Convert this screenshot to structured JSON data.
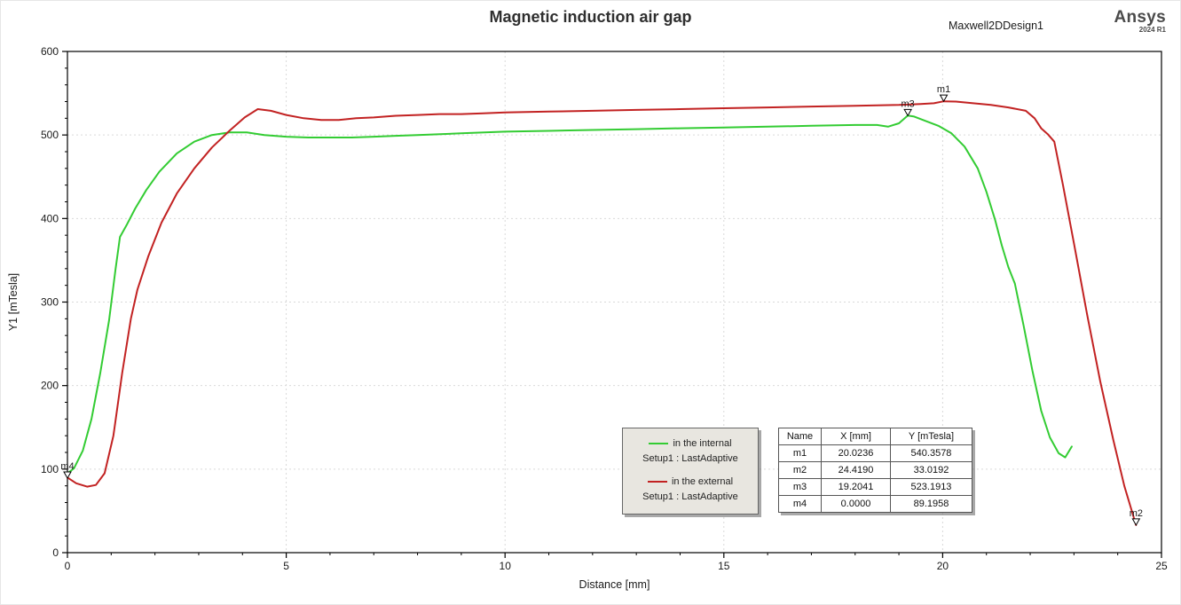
{
  "header": {
    "title": "Magnetic induction air gap",
    "design_name": "Maxwell2DDesign1",
    "brand": "Ansys",
    "brand_sub": "2024 R1"
  },
  "colors": {
    "internal": "#33cc33",
    "external": "#c22222",
    "grid": "#d9d9d9",
    "axis": "#000000"
  },
  "legend": {
    "entries": [
      {
        "label": "in the internal",
        "setup": "Setup1 : LastAdaptive",
        "color_key": "internal"
      },
      {
        "label": "in the external",
        "setup": "Setup1 : LastAdaptive",
        "color_key": "external"
      }
    ]
  },
  "marker_table": {
    "headers": [
      "Name",
      "X [mm]",
      "Y [mTesla]"
    ],
    "rows": [
      [
        "m1",
        "20.0236",
        "540.3578"
      ],
      [
        "m2",
        "24.4190",
        "33.0192"
      ],
      [
        "m3",
        "19.2041",
        "523.1913"
      ],
      [
        "m4",
        "0.0000",
        "89.1958"
      ]
    ]
  },
  "chart_data": {
    "type": "line",
    "title": "Magnetic induction air gap",
    "xlabel": "Distance [mm]",
    "ylabel": "Y1 [mTesla]",
    "xlim": [
      0,
      25
    ],
    "ylim": [
      0,
      600
    ],
    "xticks": [
      0,
      5,
      10,
      15,
      20,
      25
    ],
    "yticks": [
      0,
      100,
      200,
      300,
      400,
      500,
      600
    ],
    "x_minor_step": 1,
    "y_minor_step": 20,
    "grid": true,
    "legend_position": "lower-center-right",
    "series": [
      {
        "name": "in the internal",
        "setup": "Setup1 : LastAdaptive",
        "color": "#33cc33",
        "points": [
          [
            0,
            95
          ],
          [
            0.15,
            101
          ],
          [
            0.35,
            122
          ],
          [
            0.55,
            160
          ],
          [
            0.75,
            215
          ],
          [
            0.95,
            278
          ],
          [
            1.1,
            340
          ],
          [
            1.2,
            378
          ],
          [
            1.35,
            392
          ],
          [
            1.55,
            412
          ],
          [
            1.8,
            434
          ],
          [
            2.1,
            456
          ],
          [
            2.5,
            478
          ],
          [
            2.9,
            492
          ],
          [
            3.3,
            500
          ],
          [
            3.7,
            503
          ],
          [
            4.1,
            503
          ],
          [
            4.5,
            500
          ],
          [
            5,
            498
          ],
          [
            5.5,
            497
          ],
          [
            6,
            497
          ],
          [
            6.5,
            497
          ],
          [
            7,
            498
          ],
          [
            7.5,
            499
          ],
          [
            8,
            500
          ],
          [
            9,
            502
          ],
          [
            10,
            504
          ],
          [
            11,
            505
          ],
          [
            12,
            506
          ],
          [
            13,
            507
          ],
          [
            14,
            508
          ],
          [
            15,
            509
          ],
          [
            16,
            510
          ],
          [
            17,
            511
          ],
          [
            18,
            512
          ],
          [
            18.5,
            512
          ],
          [
            18.75,
            510
          ],
          [
            19,
            514
          ],
          [
            19.2041,
            523.1913
          ],
          [
            19.35,
            522
          ],
          [
            19.6,
            517
          ],
          [
            19.9,
            511
          ],
          [
            20.2,
            502
          ],
          [
            20.5,
            486
          ],
          [
            20.8,
            460
          ],
          [
            21,
            432
          ],
          [
            21.2,
            398
          ],
          [
            21.35,
            368
          ],
          [
            21.5,
            342
          ],
          [
            21.65,
            322
          ],
          [
            21.85,
            272
          ],
          [
            22.05,
            218
          ],
          [
            22.25,
            170
          ],
          [
            22.45,
            138
          ],
          [
            22.65,
            119
          ],
          [
            22.8,
            114
          ],
          [
            22.95,
            127
          ]
        ]
      },
      {
        "name": "in the external",
        "setup": "Setup1 : LastAdaptive",
        "color": "#c22222",
        "points": [
          [
            0,
            90
          ],
          [
            0.2,
            83
          ],
          [
            0.45,
            79
          ],
          [
            0.65,
            81
          ],
          [
            0.85,
            95
          ],
          [
            1.05,
            140
          ],
          [
            1.25,
            215
          ],
          [
            1.45,
            280
          ],
          [
            1.6,
            315
          ],
          [
            1.85,
            355
          ],
          [
            2.15,
            395
          ],
          [
            2.5,
            430
          ],
          [
            2.9,
            460
          ],
          [
            3.3,
            485
          ],
          [
            3.7,
            505
          ],
          [
            4.05,
            521
          ],
          [
            4.35,
            531
          ],
          [
            4.65,
            529
          ],
          [
            5,
            524
          ],
          [
            5.4,
            520
          ],
          [
            5.8,
            518
          ],
          [
            6.2,
            518
          ],
          [
            6.6,
            520
          ],
          [
            7,
            521
          ],
          [
            7.5,
            523
          ],
          [
            8,
            524
          ],
          [
            8.5,
            525
          ],
          [
            9,
            525
          ],
          [
            9.5,
            526
          ],
          [
            10,
            527
          ],
          [
            11,
            528
          ],
          [
            12,
            529
          ],
          [
            13,
            530
          ],
          [
            14,
            531
          ],
          [
            15,
            532
          ],
          [
            16,
            533
          ],
          [
            17,
            534
          ],
          [
            18,
            535
          ],
          [
            19,
            536
          ],
          [
            19.5,
            537
          ],
          [
            19.8,
            538
          ],
          [
            20.0236,
            540.3578
          ],
          [
            20.3,
            540
          ],
          [
            20.7,
            538
          ],
          [
            21.1,
            536
          ],
          [
            21.5,
            533
          ],
          [
            21.9,
            529
          ],
          [
            22.1,
            520
          ],
          [
            22.25,
            508
          ],
          [
            22.4,
            501
          ],
          [
            22.55,
            492
          ],
          [
            22.75,
            440
          ],
          [
            23,
            370
          ],
          [
            23.3,
            285
          ],
          [
            23.6,
            205
          ],
          [
            23.9,
            135
          ],
          [
            24.15,
            80
          ],
          [
            24.419,
            33.0192
          ]
        ]
      }
    ],
    "markers": [
      {
        "name": "m1",
        "x": 20.0236,
        "y": 540.3578
      },
      {
        "name": "m2",
        "x": 24.419,
        "y": 33.0192
      },
      {
        "name": "m3",
        "x": 19.2041,
        "y": 523.1913
      },
      {
        "name": "m4",
        "x": 0.0,
        "y": 89.1958
      }
    ]
  }
}
